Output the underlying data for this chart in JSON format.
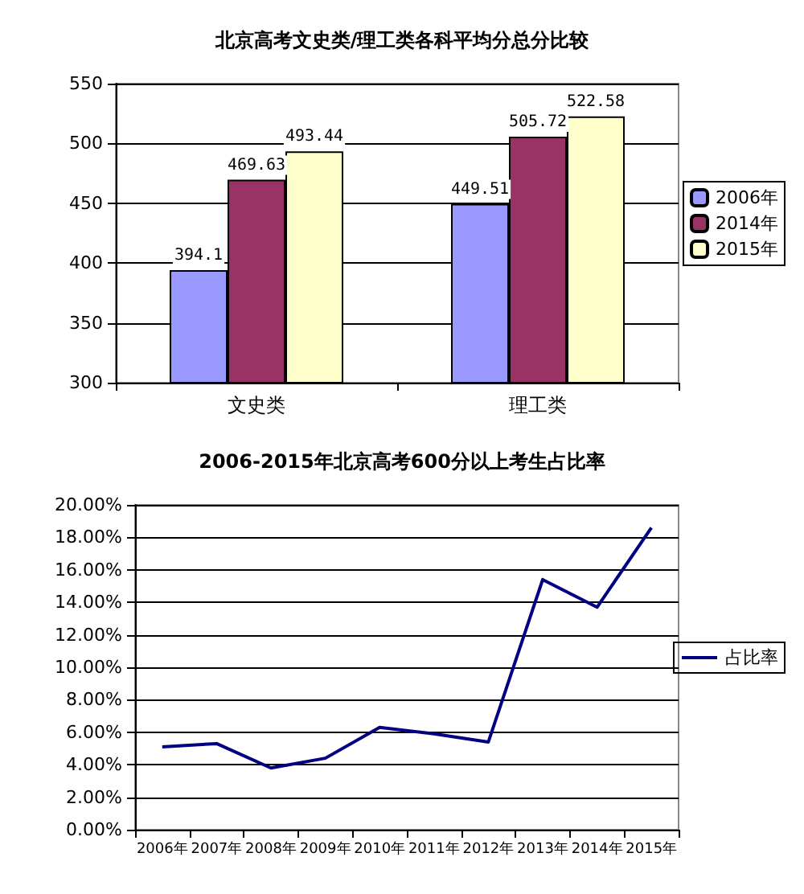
{
  "chart_data": [
    {
      "type": "bar",
      "title": "北京高考文史类/理工类各科平均分总分比较",
      "categories": [
        "文史类",
        "理工类"
      ],
      "series": [
        {
          "name": "2006年",
          "color": "#9999ff",
          "values": [
            394.1,
            449.51
          ]
        },
        {
          "name": "2014年",
          "color": "#993366",
          "values": [
            469.63,
            505.72
          ]
        },
        {
          "name": "2015年",
          "color": "#ffffcc",
          "values": [
            493.44,
            522.58
          ]
        }
      ],
      "data_labels": true,
      "ylim": [
        300,
        550
      ],
      "yticks": [
        300,
        350,
        400,
        450,
        500,
        550
      ],
      "grid": "y",
      "legend": "right"
    },
    {
      "type": "line",
      "title": "2006-2015年北京高考600分以上考生占比率",
      "categories": [
        "2006年",
        "2007年",
        "2008年",
        "2009年",
        "2010年",
        "2011年",
        "2012年",
        "2013年",
        "2014年",
        "2015年"
      ],
      "series": [
        {
          "name": "占比率",
          "color": "#000080",
          "values": [
            5.1,
            5.3,
            3.8,
            4.4,
            6.3,
            5.9,
            5.4,
            15.4,
            13.7,
            18.6
          ]
        }
      ],
      "ylim": [
        0,
        20
      ],
      "yticks": [
        {
          "value": 0,
          "label": "0.00%"
        },
        {
          "value": 2,
          "label": "2.00%"
        },
        {
          "value": 4,
          "label": "4.00%"
        },
        {
          "value": 6,
          "label": "6.00%"
        },
        {
          "value": 8,
          "label": "8.00%"
        },
        {
          "value": 10,
          "label": "10.00%"
        },
        {
          "value": 12,
          "label": "12.00%"
        },
        {
          "value": 14,
          "label": "14.00%"
        },
        {
          "value": 16,
          "label": "16.00%"
        },
        {
          "value": 18,
          "label": "18.00%"
        },
        {
          "value": 20,
          "label": "20.00%"
        }
      ],
      "grid": "y",
      "legend": "right",
      "marker": "none",
      "line_style": "solid"
    }
  ]
}
